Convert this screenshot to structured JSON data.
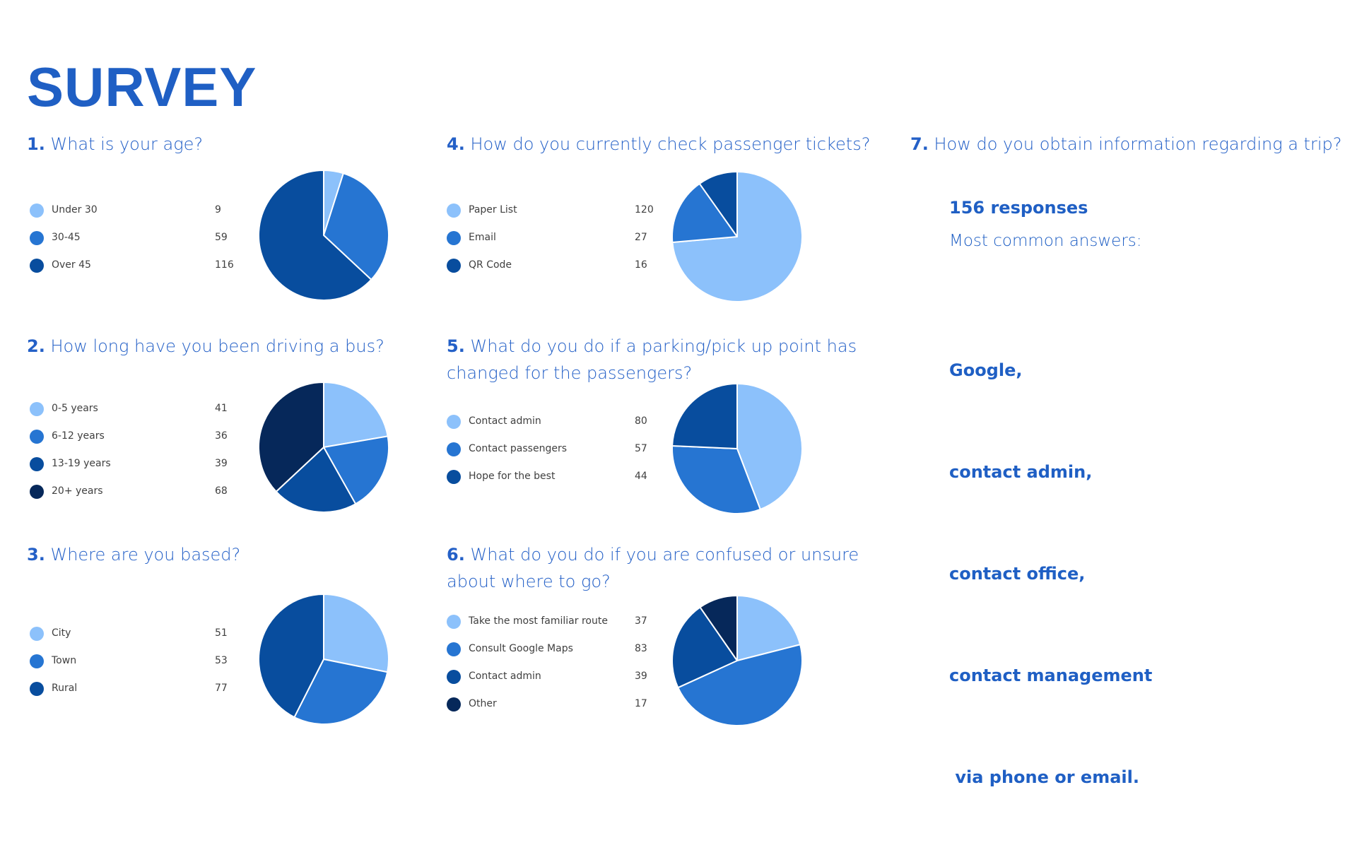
{
  "page": {
    "title": "SURVEY"
  },
  "colors": {
    "accent": "#1f5fc4",
    "c1": "#8cc1fb",
    "c2": "#2675d2",
    "c3": "#084d9e",
    "c4": "#06285a"
  },
  "questions": [
    {
      "num": "1.",
      "text": "What is your age?"
    },
    {
      "num": "2.",
      "text": "How long have you been driving a bus?"
    },
    {
      "num": "3.",
      "text": "Where are you based?"
    },
    {
      "num": "4.",
      "text": "How do you currently check passenger tickets?"
    },
    {
      "num": "5.",
      "text": "What do you do if a parking/pick up point has changed for the passengers?"
    },
    {
      "num": "6.",
      "text": "What do you do if you are confused or unsure about where to go?"
    },
    {
      "num": "7.",
      "text": "How do you obtain information regarding a trip?"
    }
  ],
  "q7": {
    "responses": "156 responses",
    "common_label": "Most common answers:",
    "answers": [
      "Google,",
      "contact admin,",
      "contact office,",
      "contact management",
      " via phone or email."
    ]
  },
  "chart_data": [
    {
      "type": "pie",
      "title": "What is your age?",
      "categories": [
        "Under 30",
        "30-45",
        "Over 45"
      ],
      "values": [
        9,
        59,
        116
      ]
    },
    {
      "type": "pie",
      "title": "How long have you been driving a bus?",
      "categories": [
        "0-5 years",
        "6-12 years",
        "13-19 years",
        "20+ years"
      ],
      "values": [
        41,
        36,
        39,
        68
      ]
    },
    {
      "type": "pie",
      "title": "Where are you based?",
      "categories": [
        "City",
        "Town",
        "Rural"
      ],
      "values": [
        51,
        53,
        77
      ]
    },
    {
      "type": "pie",
      "title": "How do you currently check passenger tickets?",
      "categories": [
        "Paper List",
        "Email",
        "QR Code"
      ],
      "values": [
        120,
        27,
        16
      ]
    },
    {
      "type": "pie",
      "title": "What do you do if a parking/pick up point has changed for the passengers?",
      "categories": [
        "Contact admin",
        "Contact passengers",
        "Hope for the best"
      ],
      "values": [
        80,
        57,
        44
      ]
    },
    {
      "type": "pie",
      "title": "What do you do if you are confused or unsure about where to go?",
      "categories": [
        "Take the most familiar route",
        "Consult Google Maps",
        "Contact admin",
        "Other"
      ],
      "values": [
        37,
        83,
        39,
        17
      ]
    }
  ]
}
